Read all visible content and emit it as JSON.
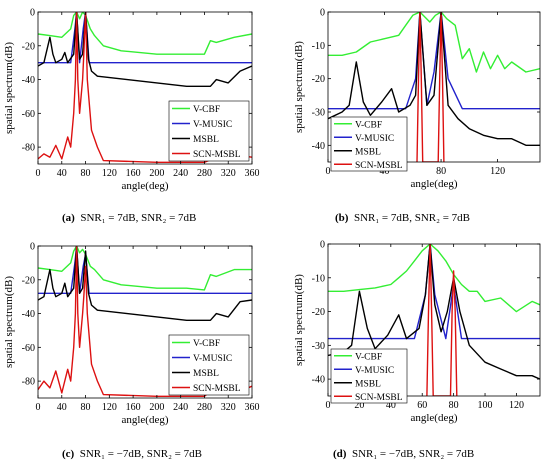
{
  "captions": [
    {
      "letter": "(a)",
      "text": "SNR₁ = 7dB, SNR₂ = 7dB"
    },
    {
      "letter": "(b)",
      "text": "SNR₁ = 7dB, SNR₂ = 7dB"
    },
    {
      "letter": "(c)",
      "text": "SNR₁ = −7dB, SNR₂ = 7dB"
    },
    {
      "letter": "(d)",
      "text": "SNR₁ = −7dB, SNR₂ = 7dB"
    }
  ],
  "colors": {
    "V-CBF": "#33ee33",
    "V-MUSIC": "#2222cc",
    "MSBL": "#000000",
    "SCN-MSBL": "#dd1111"
  },
  "chart_data": [
    {
      "type": "line",
      "xlabel": "angle(deg)",
      "ylabel": "spatial spectrum(dB)",
      "xlim": [
        0,
        360
      ],
      "ylim": [
        -90,
        0
      ],
      "xticks": [
        0,
        40,
        80,
        120,
        160,
        200,
        240,
        280,
        320,
        360
      ],
      "yticks": [
        0,
        -20,
        -40,
        -60,
        -80
      ],
      "legend": "bottom-right",
      "grid": false,
      "series": [
        {
          "name": "V-CBF",
          "x": [
            0,
            20,
            40,
            55,
            60,
            65,
            70,
            75,
            80,
            88,
            95,
            110,
            140,
            200,
            250,
            280,
            290,
            300,
            330,
            360
          ],
          "y": [
            -13,
            -14,
            -15,
            -10,
            -2,
            0,
            -4,
            0,
            -2,
            -10,
            -14,
            -20,
            -23,
            -25,
            -25,
            -25,
            -17,
            -18,
            -15,
            -13
          ]
        },
        {
          "name": "V-MUSIC",
          "x": [
            0,
            30,
            55,
            62,
            65,
            70,
            76,
            80,
            86,
            100,
            200,
            360
          ],
          "y": [
            -30,
            -30,
            -30,
            -10,
            0,
            -30,
            -10,
            0,
            -30,
            -30,
            -30,
            -30
          ]
        },
        {
          "name": "MSBL",
          "x": [
            0,
            10,
            20,
            25,
            30,
            40,
            45,
            50,
            60,
            65,
            70,
            75,
            80,
            85,
            90,
            100,
            150,
            200,
            250,
            290,
            300,
            320,
            340,
            360
          ],
          "y": [
            -32,
            -30,
            -15,
            -25,
            -30,
            -28,
            -24,
            -30,
            -25,
            0,
            -28,
            -25,
            0,
            -28,
            -35,
            -38,
            -40,
            -42,
            -44,
            -44,
            -40,
            -42,
            -35,
            -32
          ]
        },
        {
          "name": "SCN-MSBL",
          "x": [
            0,
            10,
            20,
            30,
            40,
            50,
            55,
            60,
            63,
            65,
            67,
            70,
            75,
            77,
            80,
            83,
            90,
            100,
            110,
            200,
            280,
            300,
            320,
            340,
            360
          ],
          "y": [
            -87,
            -84,
            -86,
            -79,
            -87,
            -74,
            -80,
            -60,
            -40,
            0,
            -40,
            -60,
            -40,
            -25,
            0,
            -40,
            -70,
            -80,
            -88,
            -89,
            -89,
            -86,
            -81,
            -85,
            -86
          ]
        }
      ]
    },
    {
      "type": "line",
      "xlabel": "angle(deg)",
      "ylabel": "spatial spectrum(dB)",
      "xlim": [
        0,
        150
      ],
      "ylim": [
        -45,
        0
      ],
      "xticks": [
        0,
        40,
        80,
        120
      ],
      "yticks": [
        0,
        -10,
        -20,
        -30,
        -40
      ],
      "legend": "bottom-left",
      "grid": false,
      "series": [
        {
          "name": "V-CBF",
          "x": [
            0,
            10,
            20,
            30,
            40,
            50,
            55,
            60,
            65,
            72,
            76,
            80,
            84,
            90,
            95,
            100,
            105,
            110,
            115,
            120,
            125,
            130,
            140,
            150
          ],
          "y": [
            -13,
            -13,
            -12,
            -9,
            -8,
            -7,
            -4,
            -1,
            0,
            -3,
            -1,
            0,
            -2,
            -4,
            -14,
            -11,
            -18,
            -12,
            -17,
            -13,
            -17,
            -15,
            -18,
            -17
          ]
        },
        {
          "name": "V-MUSIC",
          "x": [
            0,
            40,
            55,
            62,
            65,
            70,
            75,
            80,
            85,
            95,
            150
          ],
          "y": [
            -29,
            -29,
            -29,
            -20,
            0,
            -28,
            -18,
            0,
            -20,
            -29,
            -29
          ]
        },
        {
          "name": "MSBL",
          "x": [
            0,
            10,
            15,
            20,
            25,
            30,
            38,
            45,
            50,
            58,
            62,
            65,
            70,
            75,
            80,
            85,
            92,
            100,
            110,
            120,
            130,
            140,
            150
          ],
          "y": [
            -32,
            -30,
            -28,
            -15,
            -27,
            -31,
            -27,
            -23,
            -30,
            -28,
            -25,
            0,
            -28,
            -25,
            0,
            -28,
            -32,
            -35,
            -37,
            -38,
            -38,
            -40,
            -40
          ]
        },
        {
          "name": "SCN-MSBL",
          "x": [
            63,
            64,
            65,
            66,
            67,
            78,
            79,
            80,
            81,
            82
          ],
          "y": [
            -45,
            -20,
            0,
            -20,
            -45,
            -45,
            -20,
            0,
            -20,
            -45
          ]
        }
      ]
    },
    {
      "type": "line",
      "xlabel": "angle(deg)",
      "ylabel": "spatial spectrum(dB)",
      "xlim": [
        0,
        360
      ],
      "ylim": [
        -90,
        0
      ],
      "xticks": [
        0,
        40,
        80,
        120,
        160,
        200,
        240,
        280,
        320,
        360
      ],
      "yticks": [
        0,
        -20,
        -40,
        -60,
        -80
      ],
      "legend": "bottom-right",
      "grid": false,
      "series": [
        {
          "name": "V-CBF",
          "x": [
            0,
            20,
            40,
            55,
            60,
            65,
            70,
            75,
            80,
            88,
            95,
            110,
            140,
            200,
            250,
            280,
            290,
            300,
            330,
            360
          ],
          "y": [
            -13,
            -14,
            -15,
            -10,
            -3,
            0,
            -4,
            -2,
            -5,
            -12,
            -14,
            -20,
            -23,
            -25,
            -25,
            -26,
            -17,
            -18,
            -14,
            -14
          ]
        },
        {
          "name": "V-MUSIC",
          "x": [
            0,
            30,
            55,
            62,
            65,
            70,
            76,
            80,
            86,
            100,
            200,
            360
          ],
          "y": [
            -28,
            -28,
            -28,
            -10,
            0,
            -28,
            -12,
            -5,
            -28,
            -28,
            -28,
            -28
          ]
        },
        {
          "name": "MSBL",
          "x": [
            0,
            10,
            20,
            25,
            30,
            40,
            45,
            50,
            60,
            65,
            70,
            75,
            80,
            85,
            90,
            100,
            150,
            200,
            250,
            290,
            300,
            320,
            340,
            360
          ],
          "y": [
            -32,
            -30,
            -14,
            -25,
            -30,
            -28,
            -22,
            -30,
            -25,
            0,
            -28,
            -25,
            -3,
            -28,
            -35,
            -38,
            -40,
            -42,
            -44,
            -44,
            -40,
            -42,
            -33,
            -32
          ]
        },
        {
          "name": "SCN-MSBL",
          "x": [
            0,
            10,
            20,
            30,
            40,
            50,
            55,
            60,
            63,
            65,
            67,
            70,
            75,
            77,
            80,
            83,
            90,
            100,
            110,
            200,
            280,
            300,
            320,
            340,
            360
          ],
          "y": [
            -85,
            -80,
            -84,
            -74,
            -87,
            -73,
            -80,
            -60,
            -40,
            0,
            -40,
            -60,
            -40,
            -30,
            -12,
            -40,
            -70,
            -80,
            -88,
            -89,
            -89,
            -83,
            -77,
            -86,
            -83
          ]
        }
      ]
    },
    {
      "type": "line",
      "xlabel": "angle(deg)",
      "ylabel": "spatial spectrum(dB)",
      "xlim": [
        0,
        135
      ],
      "ylim": [
        -45,
        0
      ],
      "xticks": [
        0,
        20,
        40,
        60,
        80,
        100,
        120
      ],
      "yticks": [
        0,
        -10,
        -20,
        -30,
        -40
      ],
      "legend": "bottom-left",
      "grid": false,
      "series": [
        {
          "name": "V-CBF",
          "x": [
            0,
            10,
            20,
            30,
            40,
            45,
            50,
            55,
            60,
            65,
            70,
            75,
            80,
            85,
            90,
            95,
            100,
            110,
            120,
            130,
            135
          ],
          "y": [
            -14,
            -14,
            -13.5,
            -13,
            -12,
            -10,
            -8,
            -5,
            -2,
            0,
            -2,
            -5,
            -9,
            -12,
            -14,
            -14,
            -17,
            -16,
            -20,
            -17,
            -18
          ]
        },
        {
          "name": "V-MUSIC",
          "x": [
            0,
            40,
            55,
            62,
            65,
            68,
            75,
            80,
            85,
            100,
            135
          ],
          "y": [
            -28,
            -28,
            -28,
            -15,
            0,
            -15,
            -28,
            -12,
            -28,
            -28,
            -28
          ]
        },
        {
          "name": "MSBL",
          "x": [
            0,
            10,
            15,
            20,
            25,
            30,
            38,
            45,
            50,
            58,
            62,
            65,
            68,
            72,
            76,
            80,
            84,
            90,
            100,
            110,
            120,
            130,
            135
          ],
          "y": [
            -33,
            -32,
            -30,
            -14,
            -25,
            -31,
            -27,
            -21,
            -28,
            -25,
            -15,
            0,
            -18,
            -26,
            -20,
            -10,
            -20,
            -30,
            -35,
            -37,
            -39,
            -39,
            -40
          ]
        },
        {
          "name": "SCN-MSBL",
          "x": [
            63,
            64,
            65,
            66,
            67,
            78,
            79,
            80,
            81,
            82
          ],
          "y": [
            -45,
            -20,
            0,
            -20,
            -45,
            -45,
            -20,
            -8,
            -20,
            -45
          ]
        }
      ]
    }
  ]
}
